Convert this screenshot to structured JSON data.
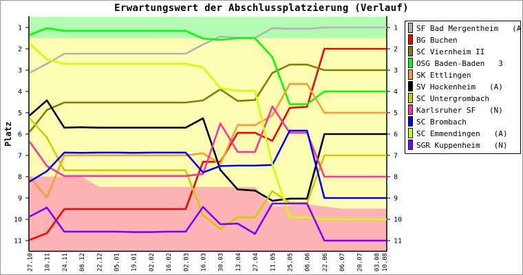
{
  "chart_data": {
    "type": "line",
    "title": "Erwartungswert der Abschlussplatzierung (Verlauf)",
    "xlabel": "",
    "ylabel": "Platz",
    "ylim": [
      0.5,
      11.5
    ],
    "y_inverted": true,
    "yticks": [
      1,
      2,
      3,
      4,
      5,
      6,
      7,
      8,
      9,
      10,
      11
    ],
    "x": [
      "27.10",
      "10.11",
      "24.11",
      "08.12",
      "22.12",
      "05.01",
      "19.01",
      "02.02",
      "16.02",
      "02.03",
      "16.03",
      "30.03",
      "13.04",
      "27.04",
      "11.05",
      "25.05",
      "08.06",
      "22.06",
      "06.07",
      "20.07",
      "03.08",
      "10.08"
    ],
    "x_position_index": [
      0,
      1,
      2,
      3,
      4,
      5,
      6,
      7,
      8,
      9,
      10,
      11,
      12,
      13,
      14,
      15,
      16,
      17,
      18,
      19,
      20,
      20.5
    ],
    "legend_position": "right",
    "bands": {
      "promotion_upper_rank": 1.5,
      "relegation_lower_rank": [
        8.0,
        8.0,
        8.0,
        8.0,
        8.48,
        8.48,
        8.48,
        8.48,
        8.48,
        8.48,
        8.48,
        8.48,
        8.48,
        8.48,
        9.4,
        9.35,
        9.3,
        9.4,
        9.5,
        9.5,
        9.5,
        9.5
      ],
      "colors": {
        "promotion": "#b3fbb3",
        "middle": "#fdfdb3",
        "relegation": "#fdb3b3"
      }
    },
    "series": [
      {
        "name": "SF Bad Mergentheim   (A)",
        "color": "#b3b3b3",
        "values": [
          3.13,
          2.7,
          2.23,
          2.23,
          2.23,
          2.23,
          2.23,
          2.23,
          2.23,
          2.23,
          1.8,
          1.42,
          1.48,
          1.48,
          1.03,
          1.06,
          1.06,
          1.0,
          1.0,
          1.0,
          1.0,
          1.0
        ]
      },
      {
        "name": "BG Buchen",
        "color": "#ff0000",
        "values": [
          10.97,
          10.65,
          9.52,
          9.52,
          9.52,
          9.52,
          9.52,
          9.52,
          9.52,
          9.52,
          7.3,
          7.3,
          5.94,
          5.94,
          6.32,
          4.77,
          4.72,
          2.0,
          2.0,
          2.0,
          2.0,
          2.0
        ]
      },
      {
        "name": "SC Viernheim II",
        "color": "#808000",
        "values": [
          5.9,
          4.87,
          4.52,
          4.52,
          4.52,
          4.52,
          4.52,
          4.52,
          4.52,
          4.52,
          4.42,
          3.9,
          4.45,
          4.4,
          3.13,
          2.74,
          2.74,
          3.0,
          3.0,
          3.0,
          3.0,
          3.0
        ]
      },
      {
        "name": "OSG Baden-Baden   3",
        "color": "#00ff00",
        "values": [
          1.35,
          1.03,
          1.16,
          1.16,
          1.16,
          1.16,
          1.16,
          1.16,
          1.16,
          1.16,
          1.52,
          1.58,
          1.5,
          1.5,
          2.39,
          4.6,
          4.6,
          4.0,
          4.0,
          4.0,
          4.0,
          4.0
        ]
      },
      {
        "name": "SK Ettlingen",
        "color": "#ff9933",
        "values": [
          8.0,
          8.97,
          7.0,
          7.0,
          7.0,
          7.0,
          7.0,
          7.0,
          7.0,
          7.0,
          6.9,
          7.4,
          5.58,
          5.58,
          5.13,
          3.65,
          3.65,
          5.0,
          5.0,
          5.0,
          5.0,
          5.0
        ]
      },
      {
        "name": "SV Hockenheim   (A)",
        "color": "#000000",
        "values": [
          5.13,
          4.42,
          5.7,
          5.68,
          5.7,
          5.7,
          5.7,
          5.7,
          5.7,
          5.7,
          5.26,
          7.68,
          8.6,
          8.65,
          9.13,
          9.03,
          9.03,
          6.0,
          6.0,
          6.0,
          6.0,
          6.0
        ]
      },
      {
        "name": "SC Untergrombach",
        "color": "#cccc00",
        "values": [
          5.26,
          6.16,
          7.7,
          7.7,
          7.7,
          7.7,
          7.7,
          7.7,
          7.7,
          7.7,
          9.8,
          10.45,
          9.9,
          9.9,
          8.68,
          9.23,
          9.23,
          7.0,
          7.0,
          7.0,
          7.0,
          7.0
        ]
      },
      {
        "name": "Karlsruher SF   (N)",
        "color": "#ff3399",
        "values": [
          6.35,
          7.5,
          7.97,
          7.97,
          7.97,
          7.97,
          7.97,
          7.97,
          7.97,
          7.97,
          7.87,
          5.5,
          6.84,
          6.84,
          4.7,
          5.94,
          5.94,
          8.0,
          8.0,
          8.0,
          8.0,
          8.0
        ]
      },
      {
        "name": "SC Brombach",
        "color": "#0000ff",
        "values": [
          8.23,
          7.74,
          6.87,
          6.88,
          6.87,
          6.87,
          6.88,
          6.87,
          6.87,
          6.87,
          7.8,
          7.5,
          7.48,
          7.48,
          7.45,
          5.84,
          5.84,
          9.0,
          9.0,
          9.0,
          9.0,
          9.0
        ]
      },
      {
        "name": "SC Emmendingen   (A)",
        "color": "#ccff00",
        "values": [
          1.75,
          2.5,
          2.7,
          2.7,
          2.7,
          2.7,
          2.7,
          2.7,
          2.7,
          2.7,
          2.87,
          3.85,
          3.97,
          3.97,
          7.45,
          9.9,
          9.9,
          10.0,
          10.0,
          10.0,
          10.0,
          10.0
        ]
      },
      {
        "name": "SGR Kuppenheim   (N)",
        "color": "#8000ff",
        "values": [
          9.87,
          9.45,
          10.58,
          10.58,
          10.58,
          10.58,
          10.6,
          10.6,
          10.58,
          10.58,
          9.42,
          10.23,
          10.2,
          10.68,
          9.26,
          9.26,
          9.26,
          11.0,
          11.0,
          11.0,
          11.0,
          11.0
        ]
      }
    ]
  }
}
